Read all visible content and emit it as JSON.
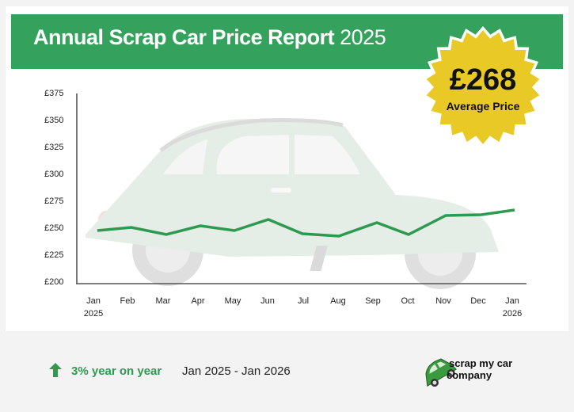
{
  "header": {
    "title": "Annual Scrap Car Price Report",
    "year": "2025"
  },
  "badge": {
    "price": "£268",
    "label": "Average Price",
    "color": "#e8c926"
  },
  "footer": {
    "yoy_change": "3% year on year",
    "date_range": "Jan 2025 - Jan 2026",
    "arrow_icon": "up-arrow-icon",
    "logo_line1": "scrap my car",
    "logo_line2": "company"
  },
  "colors": {
    "brand_green": "#34a25c",
    "line_green": "#2e9a50",
    "badge_yellow": "#e8c926",
    "background": "#f3f3f3"
  },
  "chart_data": {
    "type": "line",
    "title": "Annual Scrap Car Price Report 2025",
    "xlabel": "",
    "ylabel": "",
    "ylim": [
      200,
      375
    ],
    "yticks": [
      "£375",
      "£350",
      "£325",
      "£300",
      "£275",
      "£250",
      "£225",
      "£200"
    ],
    "categories": [
      "Jan 2025",
      "Feb",
      "Mar",
      "Apr",
      "May",
      "Jun",
      "Jul",
      "Aug",
      "Sep",
      "Oct",
      "Nov",
      "Dec",
      "Jan 2026"
    ],
    "x_labels": [
      {
        "line1": "Jan",
        "line2": "2025"
      },
      {
        "line1": "Feb",
        "line2": ""
      },
      {
        "line1": "Mar",
        "line2": ""
      },
      {
        "line1": "Apr",
        "line2": ""
      },
      {
        "line1": "May",
        "line2": ""
      },
      {
        "line1": "Jun",
        "line2": ""
      },
      {
        "line1": "Jul",
        "line2": ""
      },
      {
        "line1": "Aug",
        "line2": ""
      },
      {
        "line1": "Sep",
        "line2": ""
      },
      {
        "line1": "Oct",
        "line2": ""
      },
      {
        "line1": "Nov",
        "line2": ""
      },
      {
        "line1": "Dec",
        "line2": ""
      },
      {
        "line1": "Jan",
        "line2": "2026"
      }
    ],
    "series": [
      {
        "name": "Average scrap car price",
        "values": [
          249,
          252,
          245,
          253,
          249,
          259,
          246,
          244,
          256,
          245,
          263,
          264,
          268
        ]
      }
    ],
    "grid": false,
    "legend": "none"
  }
}
